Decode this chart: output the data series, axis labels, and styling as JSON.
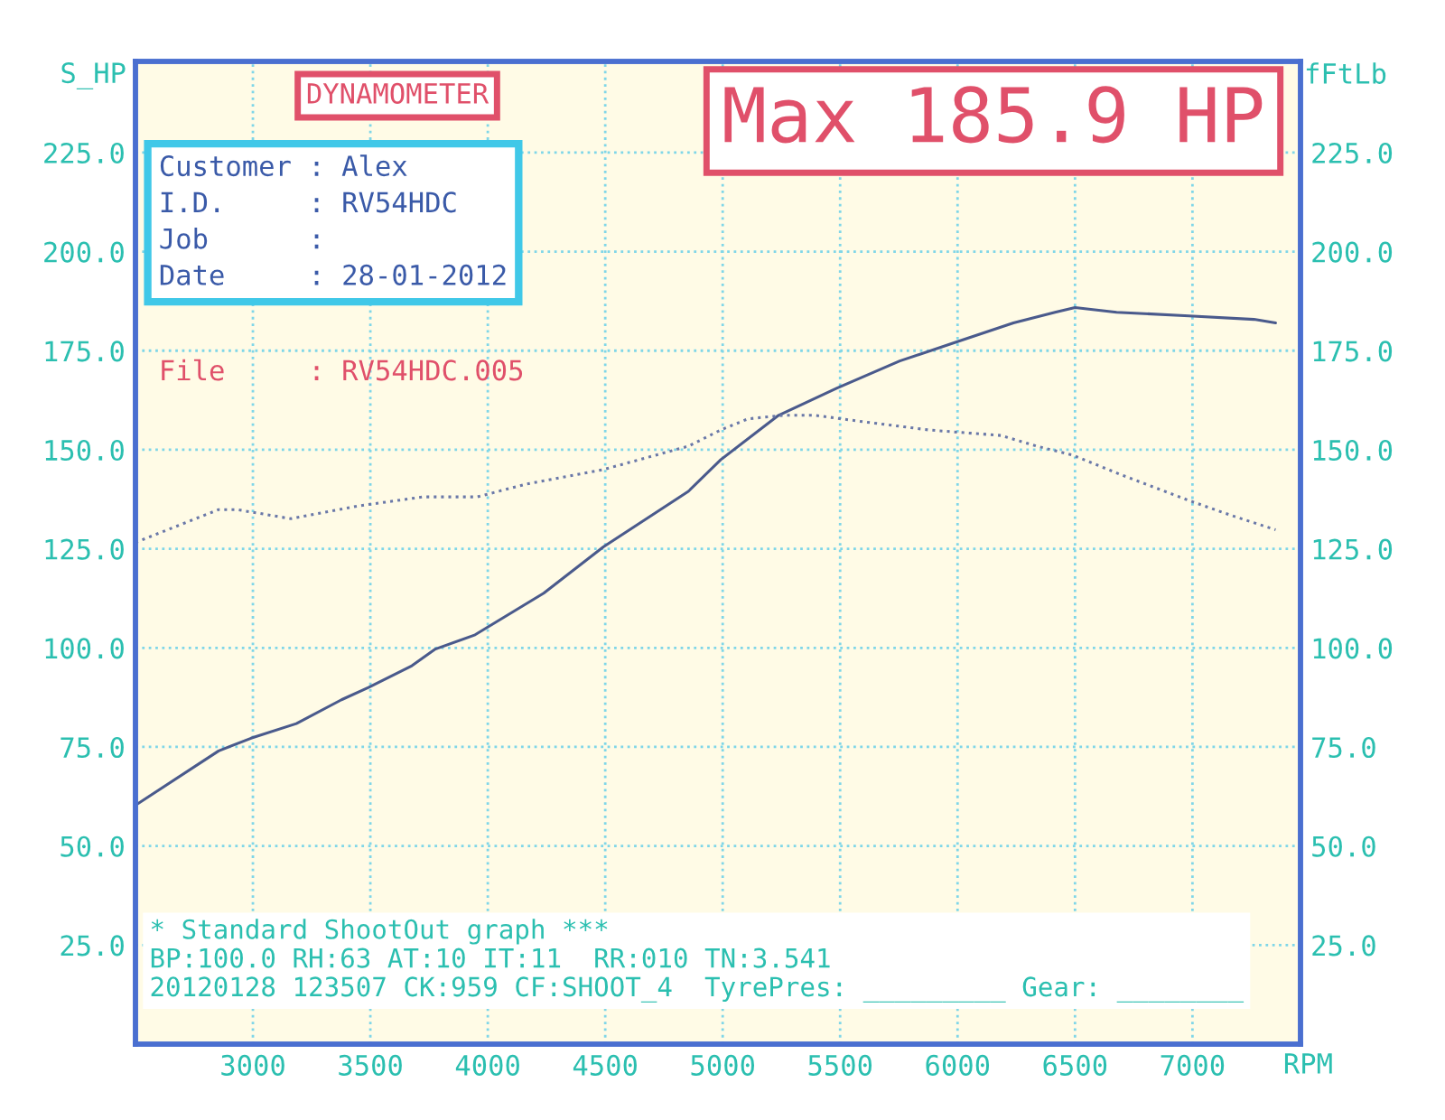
{
  "chart_data": {
    "type": "line",
    "title": "DYNAMOMETER",
    "subtitle": "Max 185.9 HP",
    "xlabel": "RPM",
    "ylabel": "S_HP",
    "y2label": "fFtLb",
    "xlim": [
      2500,
      7460
    ],
    "xticks": [
      3000,
      3500,
      4000,
      4500,
      5000,
      5500,
      6000,
      6500,
      7000
    ],
    "ylim": [
      0,
      248
    ],
    "yticks": [
      {
        "value": 25,
        "label": "25.0"
      },
      {
        "value": 50,
        "label": "50.0"
      },
      {
        "value": 75,
        "label": "75.0"
      },
      {
        "value": 100,
        "label": "100.0"
      },
      {
        "value": 125,
        "label": "125.0"
      },
      {
        "value": 150,
        "label": "150.0"
      },
      {
        "value": 175,
        "label": "175.0"
      },
      {
        "value": 200,
        "label": "200.0"
      },
      {
        "value": 225,
        "label": "225.0"
      }
    ],
    "y2lim": [
      0,
      248
    ],
    "y2ticks": [
      {
        "value": 25,
        "label": "25.0"
      },
      {
        "value": 50,
        "label": "50.0"
      },
      {
        "value": 75,
        "label": "75.0"
      },
      {
        "value": 100,
        "label": "100.0"
      },
      {
        "value": 125,
        "label": "125.0"
      },
      {
        "value": 150,
        "label": "150.0"
      },
      {
        "value": 175,
        "label": "175.0"
      },
      {
        "value": 200,
        "label": "200.0"
      },
      {
        "value": 225,
        "label": "225.0"
      }
    ],
    "grid": true,
    "marker": "none",
    "series": [
      {
        "color": "#4a5a8c",
        "line_style": "solid",
        "x": [
          2500,
          2854,
          2992,
          3185,
          3377,
          3492,
          3677,
          3777,
          3946,
          4238,
          4492,
          4854,
          4992,
          5238,
          5485,
          5754,
          5985,
          6238,
          6415,
          6500,
          6677,
          6985,
          7262,
          7354
        ],
        "values": [
          60.3,
          74.0,
          77.2,
          80.9,
          86.9,
          90.0,
          95.5,
          99.7,
          103.3,
          113.8,
          125.5,
          139.5,
          147.5,
          158.7,
          165.5,
          172.4,
          177.0,
          182.0,
          184.7,
          185.9,
          184.7,
          183.8,
          182.9,
          182.0
        ]
      },
      {
        "color": "#6a78a8",
        "line_style": "dotted",
        "axis": "y2",
        "x": [
          2500,
          2854,
          2931,
          3162,
          3446,
          3723,
          3954,
          4162,
          4492,
          4854,
          4992,
          5108,
          5262,
          5392,
          5569,
          5877,
          6185,
          6338,
          6492,
          6700,
          6985,
          7162,
          7354
        ],
        "values": [
          126.6,
          134.9,
          134.9,
          132.6,
          135.8,
          138.1,
          138.1,
          141.3,
          145.0,
          150.9,
          155.0,
          157.8,
          158.7,
          158.7,
          157.3,
          155.0,
          153.6,
          150.9,
          148.6,
          143.6,
          137.2,
          133.5,
          129.8
        ]
      }
    ],
    "annotations": [
      "Customer : Alex",
      "I.D.     : RV54HDC",
      "Job      :",
      "Date     : 28-01-2012",
      "File     : RV54HDC.005",
      "* Standard ShootOut graph ***",
      "BP:100.0 RH:63 AT:10 IT:11  RR:010 TN:3.541",
      "20120128 123507 CK:959 CF:SHOOT_4  TyrePres: _________ Gear: ________"
    ]
  }
}
